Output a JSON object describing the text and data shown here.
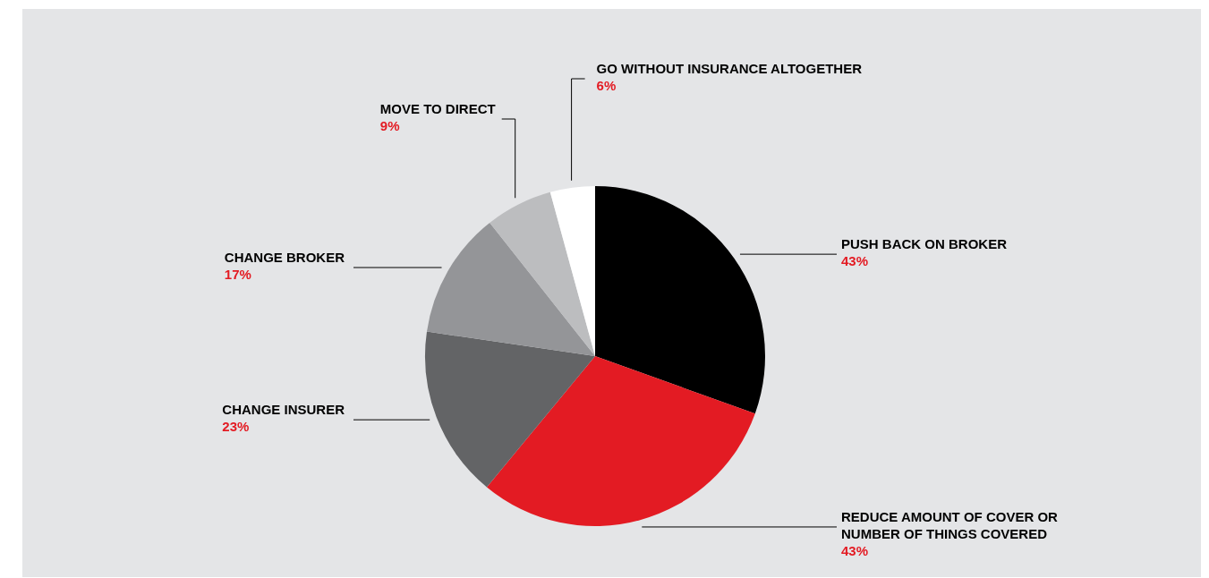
{
  "chart_data": {
    "type": "pie",
    "categories": [
      "PUSH BACK ON BROKER",
      "REDUCE AMOUNT OF COVER OR NUMBER OF THINGS COVERED",
      "CHANGE INSURER",
      "CHANGE BROKER",
      "MOVE TO DIRECT",
      "GO WITHOUT INSURANCE ALTOGETHER"
    ],
    "values": [
      43,
      43,
      23,
      17,
      9,
      6
    ],
    "value_labels": [
      "43%",
      "43%",
      "23%",
      "17%",
      "9%",
      "6%"
    ],
    "colors": [
      "#000000",
      "#e31b23",
      "#636466",
      "#949598",
      "#bcbdbf",
      "#ffffff"
    ],
    "legend": false
  }
}
